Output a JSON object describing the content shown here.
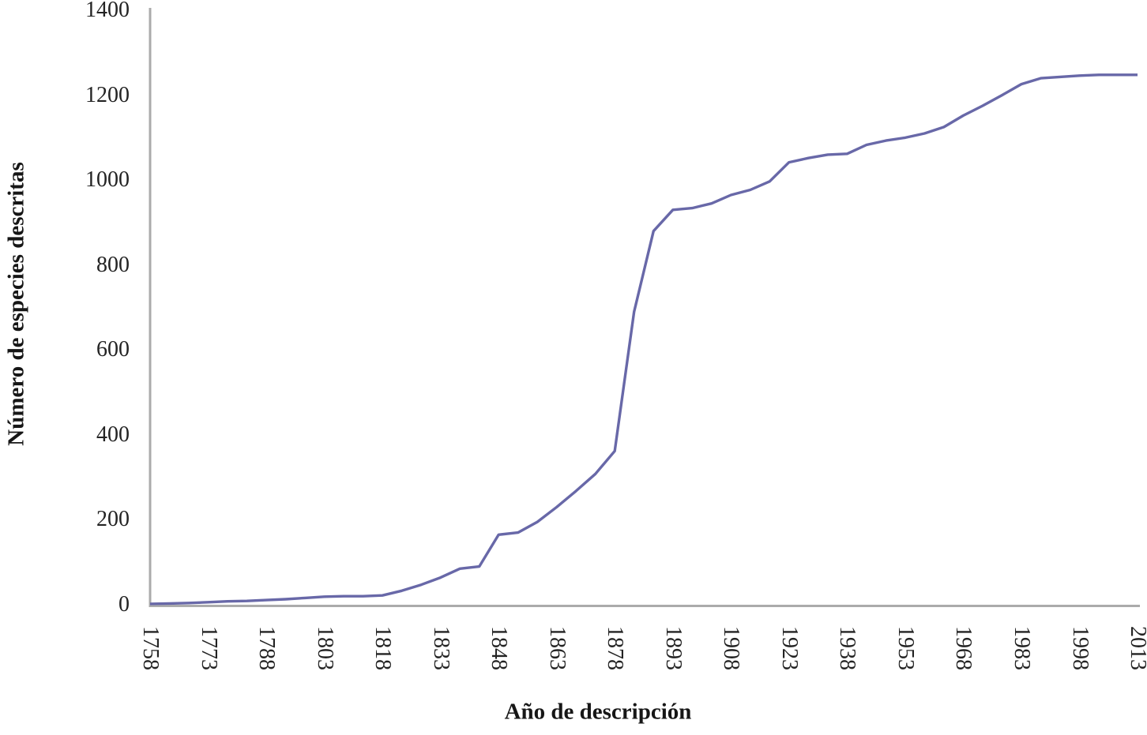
{
  "chart_data": {
    "type": "line",
    "title": "",
    "xlabel": "Año de descripción",
    "ylabel": "Número de especies descritas",
    "xlim": [
      1758,
      2013
    ],
    "ylim": [
      0,
      1400
    ],
    "xticks": [
      1758,
      1773,
      1788,
      1803,
      1818,
      1833,
      1848,
      1863,
      1878,
      1893,
      1908,
      1923,
      1938,
      1953,
      1968,
      1983,
      1998,
      2013
    ],
    "yticks": [
      0,
      200,
      400,
      600,
      800,
      1000,
      1200,
      1400
    ],
    "grid": false,
    "legend": false,
    "x": [
      1758,
      1763,
      1768,
      1773,
      1778,
      1783,
      1788,
      1793,
      1798,
      1803,
      1808,
      1813,
      1818,
      1823,
      1828,
      1833,
      1838,
      1843,
      1848,
      1853,
      1858,
      1863,
      1868,
      1873,
      1878,
      1883,
      1888,
      1893,
      1898,
      1903,
      1908,
      1913,
      1918,
      1923,
      1928,
      1933,
      1938,
      1943,
      1948,
      1953,
      1958,
      1963,
      1968,
      1973,
      1978,
      1983,
      1988,
      1993,
      1998,
      2003,
      2008,
      2013
    ],
    "values": [
      2,
      3,
      4,
      6,
      8,
      9,
      11,
      13,
      16,
      19,
      20,
      20,
      22,
      33,
      47,
      64,
      85,
      90,
      165,
      170,
      195,
      230,
      268,
      308,
      362,
      690,
      880,
      930,
      934,
      945,
      965,
      977,
      997,
      1042,
      1052,
      1060,
      1062,
      1083,
      1093,
      1100,
      1110,
      1125,
      1152,
      1175,
      1200,
      1226,
      1240,
      1243,
      1246,
      1248,
      1248,
      1248
    ],
    "line_color": "#6868A8",
    "axis_color": "#ABABAB",
    "text_color": "#232323"
  }
}
